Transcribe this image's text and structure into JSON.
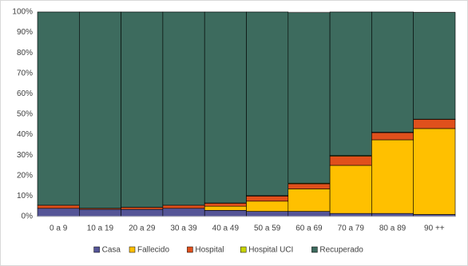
{
  "chart_data": {
    "type": "stacked_bar",
    "categories": [
      "0 a 9",
      "10 a 19",
      "20 a 29",
      "30 a 39",
      "40 a 49",
      "50 a 59",
      "60 a 69",
      "70 a 79",
      "80 a 89",
      "90 ++"
    ],
    "series": [
      {
        "name": "Casa",
        "color": "#555597",
        "values": [
          4,
          3.5,
          3.5,
          4,
          3,
          2.5,
          2.5,
          1.5,
          1.5,
          1
        ]
      },
      {
        "name": "Fallecido",
        "color": "#ffc000",
        "values": [
          0,
          0,
          0,
          0,
          2,
          5,
          11,
          23.5,
          36,
          42
        ]
      },
      {
        "name": "Hospital",
        "color": "#e0501c",
        "values": [
          1.5,
          0.5,
          1,
          1.5,
          1.5,
          2.5,
          2.5,
          4.5,
          3.5,
          4.5
        ]
      },
      {
        "name": "Hospital UCI",
        "color": "#c8d400",
        "values": [
          0,
          0,
          0,
          0,
          0.1,
          0.2,
          0.3,
          0.3,
          0.2,
          0.1
        ]
      },
      {
        "name": "Recuperado",
        "color": "#3d6b5e",
        "values": [
          94.5,
          96,
          95.5,
          94.5,
          93.4,
          89.8,
          83.4,
          70.2,
          58.8,
          52.2
        ]
      }
    ],
    "ylim": [
      0,
      100
    ],
    "yticks": [
      {
        "value": 0,
        "label": "0%"
      },
      {
        "value": 10,
        "label": "10%"
      },
      {
        "value": 20,
        "label": "20%"
      },
      {
        "value": 30,
        "label": "30%"
      },
      {
        "value": 40,
        "label": "40%"
      },
      {
        "value": 50,
        "label": "50%"
      },
      {
        "value": 60,
        "label": "60%"
      },
      {
        "value": 70,
        "label": "70%"
      },
      {
        "value": 80,
        "label": "80%"
      },
      {
        "value": 90,
        "label": "90%"
      },
      {
        "value": 100,
        "label": "100%"
      }
    ],
    "grid": true,
    "legend": "bottom"
  }
}
